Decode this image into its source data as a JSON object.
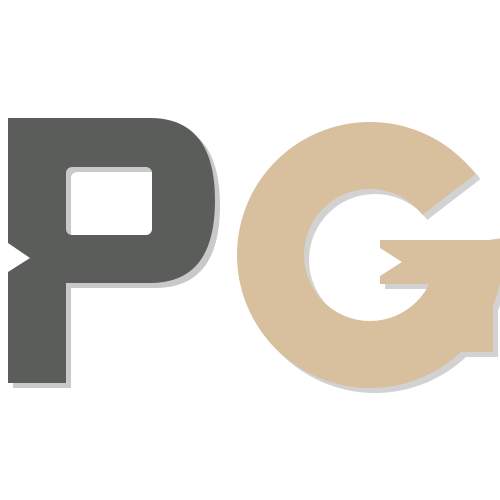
{
  "logo": {
    "text": "PG",
    "letters": [
      {
        "char": "P",
        "color": "#5a5d5a"
      },
      {
        "char": "G",
        "color": "#d8bf9d"
      }
    ],
    "shadow_color": "#c9c9c9",
    "background": "#ffffff"
  }
}
